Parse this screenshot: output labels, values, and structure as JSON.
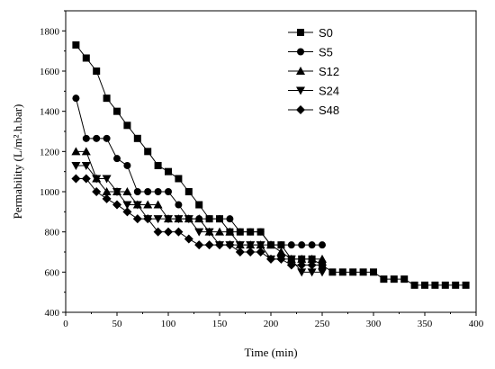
{
  "chart_data": {
    "type": "line",
    "title": "",
    "xlabel": "Time (min)",
    "ylabel": "Permability (L/m².h.bar)",
    "xlim": [
      0,
      400
    ],
    "ylim": [
      400,
      1900
    ],
    "xticks": [
      0,
      50,
      100,
      150,
      200,
      250,
      300,
      350,
      400
    ],
    "yticks": [
      400,
      600,
      800,
      1000,
      1200,
      1400,
      1600,
      1800
    ],
    "grid": false,
    "legend_position": "top-right",
    "series": [
      {
        "name": "S0",
        "marker": "square",
        "x": [
          10,
          20,
          30,
          40,
          50,
          60,
          70,
          80,
          90,
          100,
          110,
          120,
          130,
          140,
          150,
          160,
          170,
          180,
          190,
          200,
          210,
          220,
          230,
          240,
          250,
          260,
          270,
          280,
          290,
          300,
          310,
          320,
          330,
          340,
          350,
          360,
          370,
          380,
          390
        ],
        "y": [
          1730,
          1665,
          1600,
          1465,
          1400,
          1330,
          1265,
          1200,
          1130,
          1100,
          1065,
          1000,
          935,
          865,
          865,
          800,
          800,
          800,
          800,
          735,
          735,
          665,
          665,
          665,
          635,
          600,
          600,
          600,
          600,
          600,
          565,
          565,
          565,
          535,
          535,
          535,
          535,
          535,
          535
        ]
      },
      {
        "name": "S5",
        "marker": "circle",
        "x": [
          10,
          20,
          30,
          40,
          50,
          60,
          70,
          80,
          90,
          100,
          110,
          120,
          130,
          140,
          150,
          160,
          170,
          180,
          190,
          200,
          210,
          220,
          230,
          240,
          250
        ],
        "y": [
          1465,
          1265,
          1265,
          1265,
          1165,
          1130,
          1000,
          1000,
          1000,
          1000,
          935,
          865,
          865,
          865,
          865,
          865,
          800,
          800,
          800,
          735,
          735,
          735,
          735,
          735,
          735
        ]
      },
      {
        "name": "S12",
        "marker": "triangle-up",
        "x": [
          10,
          20,
          30,
          40,
          50,
          60,
          70,
          80,
          90,
          100,
          110,
          120,
          130,
          140,
          150,
          160,
          170,
          180,
          190,
          200,
          210,
          220,
          230,
          240,
          250
        ],
        "y": [
          1200,
          1200,
          1065,
          1000,
          1000,
          1000,
          935,
          935,
          935,
          865,
          865,
          865,
          865,
          800,
          800,
          800,
          735,
          735,
          735,
          735,
          700,
          665,
          665,
          665,
          665
        ]
      },
      {
        "name": "S24",
        "marker": "triangle-down",
        "x": [
          10,
          20,
          30,
          40,
          50,
          60,
          70,
          80,
          90,
          100,
          110,
          120,
          130,
          140,
          150,
          160,
          170,
          180,
          190,
          200,
          210,
          220,
          230,
          240,
          250
        ],
        "y": [
          1130,
          1130,
          1065,
          1065,
          1000,
          935,
          935,
          865,
          865,
          865,
          865,
          865,
          800,
          800,
          735,
          735,
          735,
          735,
          735,
          665,
          665,
          665,
          600,
          600,
          600
        ]
      },
      {
        "name": "S48",
        "marker": "diamond",
        "x": [
          10,
          20,
          30,
          40,
          50,
          60,
          70,
          80,
          90,
          100,
          110,
          120,
          130,
          140,
          150,
          160,
          170,
          180,
          190,
          200,
          210,
          220,
          230,
          240,
          250
        ],
        "y": [
          1065,
          1065,
          1000,
          965,
          935,
          900,
          865,
          865,
          800,
          800,
          800,
          765,
          735,
          735,
          735,
          735,
          700,
          700,
          700,
          665,
          665,
          635,
          635,
          635,
          635
        ]
      }
    ]
  }
}
